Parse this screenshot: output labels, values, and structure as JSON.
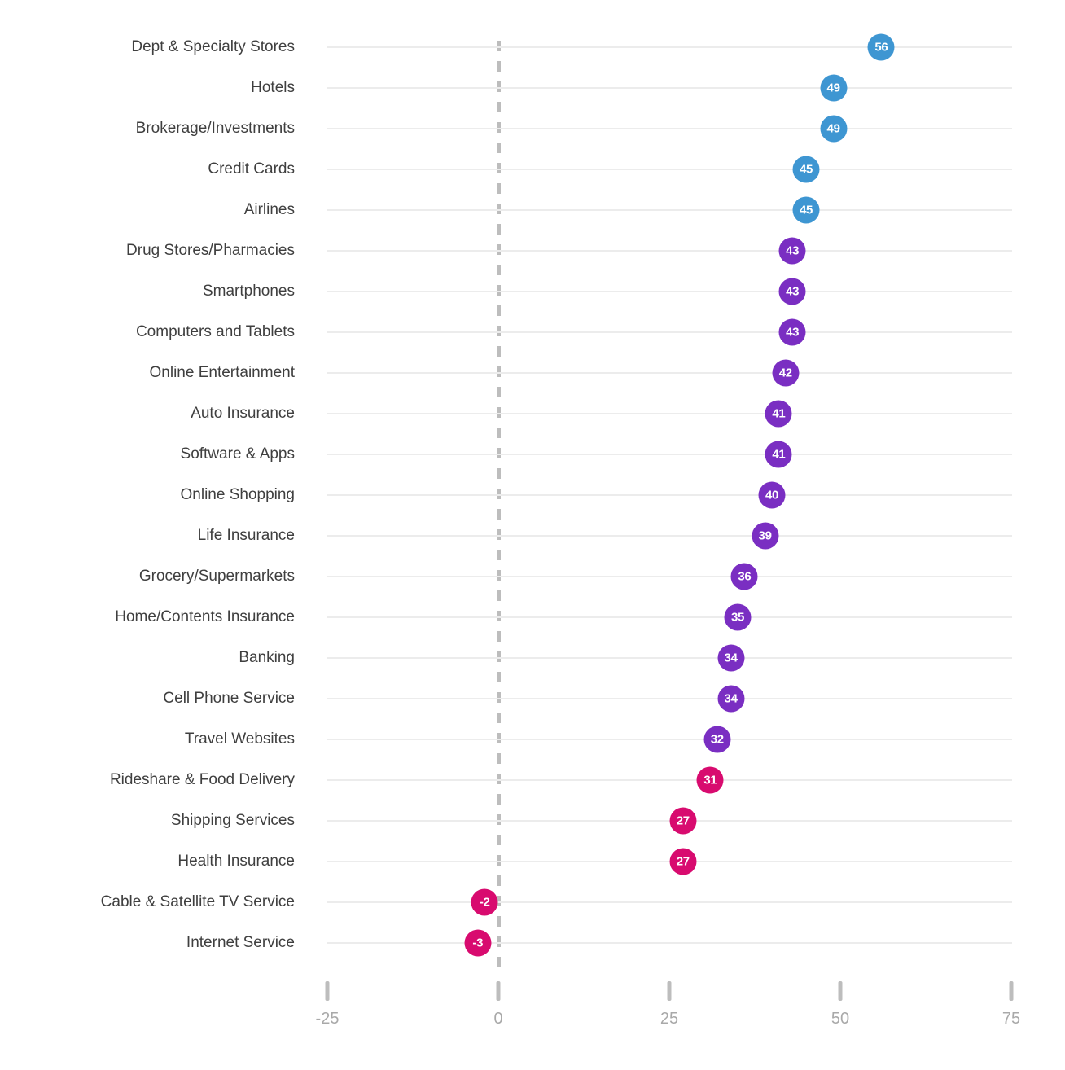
{
  "chart_data": {
    "type": "scatter",
    "subtype": "labeled-dot-plot",
    "title": "",
    "xlabel": "",
    "ylabel": "",
    "grid": "horizontal-only",
    "legend": "none",
    "x_axis": {
      "range": [
        -25,
        75
      ],
      "tick_values": [
        -25,
        0,
        25,
        50,
        75
      ],
      "tick_labels": [
        "-25",
        "0",
        "25",
        "50",
        "75"
      ],
      "zero_line_style": "dashed"
    },
    "colors": {
      "high": "#3e96d2",
      "mid": "#7a2ec2",
      "low": "#d80b6f"
    },
    "items": [
      {
        "label": "Dept & Specialty Stores",
        "value": 56,
        "value_text": "56",
        "group": "high"
      },
      {
        "label": "Hotels",
        "value": 49,
        "value_text": "49",
        "group": "high"
      },
      {
        "label": "Brokerage/Investments",
        "value": 49,
        "value_text": "49",
        "group": "high"
      },
      {
        "label": "Credit Cards",
        "value": 45,
        "value_text": "45",
        "group": "high"
      },
      {
        "label": "Airlines",
        "value": 45,
        "value_text": "45",
        "group": "high"
      },
      {
        "label": "Drug Stores/Pharmacies",
        "value": 43,
        "value_text": "43",
        "group": "mid"
      },
      {
        "label": "Smartphones",
        "value": 43,
        "value_text": "43",
        "group": "mid"
      },
      {
        "label": "Computers and Tablets",
        "value": 43,
        "value_text": "43",
        "group": "mid"
      },
      {
        "label": "Online Entertainment",
        "value": 42,
        "value_text": "42",
        "group": "mid"
      },
      {
        "label": "Auto Insurance",
        "value": 41,
        "value_text": "41",
        "group": "mid"
      },
      {
        "label": "Software & Apps",
        "value": 41,
        "value_text": "41",
        "group": "mid"
      },
      {
        "label": "Online Shopping",
        "value": 40,
        "value_text": "40",
        "group": "mid"
      },
      {
        "label": "Life Insurance",
        "value": 39,
        "value_text": "39",
        "group": "mid"
      },
      {
        "label": "Grocery/Supermarkets",
        "value": 36,
        "value_text": "36",
        "group": "mid"
      },
      {
        "label": "Home/Contents Insurance",
        "value": 35,
        "value_text": "35",
        "group": "mid"
      },
      {
        "label": "Banking",
        "value": 34,
        "value_text": "34",
        "group": "mid"
      },
      {
        "label": "Cell Phone Service",
        "value": 34,
        "value_text": "34",
        "group": "mid"
      },
      {
        "label": "Travel Websites",
        "value": 32,
        "value_text": "32",
        "group": "mid"
      },
      {
        "label": "Rideshare & Food Delivery",
        "value": 31,
        "value_text": "31",
        "group": "low"
      },
      {
        "label": "Shipping Services",
        "value": 27,
        "value_text": "27",
        "group": "low"
      },
      {
        "label": "Health Insurance",
        "value": 27,
        "value_text": "27",
        "group": "low"
      },
      {
        "label": "Cable & Satellite TV Service",
        "value": -2,
        "value_text": "-2",
        "group": "low"
      },
      {
        "label": "Internet Service",
        "value": -3,
        "value_text": "-3",
        "group": "low"
      }
    ]
  }
}
